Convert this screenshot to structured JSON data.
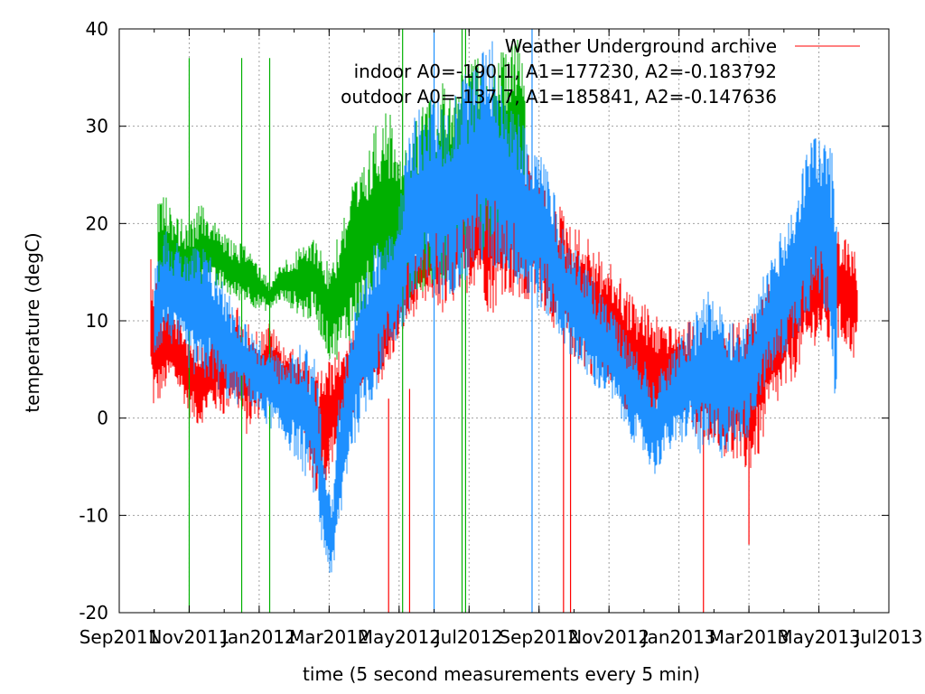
{
  "chart_data": {
    "type": "line",
    "xlabel": "time (5 second measurements every 5 min)",
    "ylabel": "temperature (degC)",
    "ylim": [
      -20,
      40
    ],
    "yticks": [
      -20,
      -10,
      0,
      10,
      20,
      30,
      40
    ],
    "x_start_month_index": 0,
    "x_end_month_index": 22,
    "xtick_labels": [
      "Sep2011",
      "Nov2011",
      "Jan2012",
      "Mar2012",
      "May2012",
      "Jul2012",
      "Sep2012",
      "Nov2012",
      "Jan2013",
      "Mar2013",
      "May2013",
      "Jul2013"
    ],
    "xtick_month_index": [
      0,
      2,
      4,
      6,
      8,
      10,
      12,
      14,
      16,
      18,
      20,
      22
    ],
    "grid": true,
    "legend": {
      "placement": "top-right",
      "entries": [
        "Weather Underground archive",
        "indoor A0=-190.1, A1=177230, A2=-0.183792",
        "outdoor A0=-137.7, A1=185841, A2=-0.147636"
      ]
    },
    "series": [
      {
        "name": "Weather Underground archive",
        "color": "#ff0000",
        "style": "line",
        "x_month": [
          0.9,
          1.0,
          1.2,
          1.5,
          1.8,
          2.0,
          2.3,
          2.6,
          3.0,
          3.3,
          3.6,
          4.0,
          4.3,
          4.6,
          5.0,
          5.3,
          5.6,
          6.0,
          6.3,
          6.6,
          7.0,
          7.3,
          7.6,
          8.0,
          8.3,
          8.6,
          9.0,
          9.3,
          9.6,
          10.0,
          10.3,
          10.6,
          11.0,
          11.3,
          11.6,
          12.0,
          12.3,
          12.6,
          13.0,
          13.3,
          13.6,
          14.0,
          14.3,
          14.6,
          15.0,
          15.3,
          15.6,
          16.0,
          16.3,
          16.6,
          17.0,
          17.3,
          17.6,
          18.0,
          18.3,
          18.6,
          19.0,
          19.3,
          19.6,
          20.0,
          20.3,
          20.6,
          21.0,
          21.1
        ],
        "min": [
          3,
          0,
          2,
          4,
          2,
          0,
          -1,
          1,
          0,
          2,
          -2,
          0,
          2,
          1,
          0,
          -3,
          -8,
          -6,
          -2,
          -1,
          2,
          3,
          4,
          8,
          10,
          11,
          12,
          10,
          12,
          13,
          14,
          10,
          13,
          12,
          11,
          12,
          10,
          8,
          6,
          5,
          4,
          3,
          2,
          0,
          -2,
          -3,
          0,
          2,
          -1,
          -3,
          -2,
          -4,
          -5,
          -6,
          -4,
          0,
          2,
          4,
          6,
          8,
          7,
          8,
          6,
          8
        ],
        "max": [
          18,
          16,
          12,
          11,
          10,
          9,
          8,
          9,
          11,
          12,
          10,
          9,
          10,
          8,
          7,
          6,
          5,
          6,
          7,
          9,
          10,
          12,
          14,
          16,
          18,
          20,
          22,
          24,
          26,
          28,
          30,
          30,
          28,
          30,
          28,
          25,
          23,
          22,
          20,
          19,
          18,
          16,
          15,
          13,
          12,
          11,
          10,
          9,
          10,
          9,
          8,
          9,
          10,
          11,
          12,
          14,
          16,
          18,
          20,
          21,
          20,
          19,
          18,
          14
        ],
        "spikes": [
          {
            "x_month": 7.7,
            "low": -20,
            "high": 2
          },
          {
            "x_month": 8.3,
            "low": -20,
            "high": 3
          },
          {
            "x_month": 12.7,
            "low": -20,
            "high": 10
          },
          {
            "x_month": 12.9,
            "low": -20,
            "high": 12
          },
          {
            "x_month": 16.7,
            "low": -20,
            "high": 5
          },
          {
            "x_month": 18.0,
            "low": -13,
            "high": 3
          }
        ]
      },
      {
        "name": "indoor A0=-190.1, A1=177230, A2=-0.183792",
        "color": "#00b000",
        "style": "line",
        "x_month": [
          1.1,
          1.3,
          1.6,
          2.0,
          2.3,
          2.6,
          3.0,
          3.3,
          3.6,
          4.0,
          4.3,
          4.6,
          5.0,
          5.3,
          5.6,
          6.0,
          6.3,
          6.6,
          7.0,
          7.3,
          7.6,
          8.0,
          8.3,
          8.6,
          9.0,
          9.3,
          9.6,
          10.0,
          10.3,
          10.6,
          11.0,
          11.3,
          11.6
        ],
        "min": [
          12,
          13,
          12,
          11,
          12,
          13,
          13,
          12,
          12,
          11,
          11,
          12,
          11,
          10,
          10,
          6,
          6,
          8,
          10,
          11,
          12,
          12,
          12,
          13,
          13,
          14,
          15,
          16,
          17,
          16,
          18,
          20,
          22
        ],
        "max": [
          22,
          23,
          21,
          20,
          22,
          21,
          19,
          18,
          18,
          16,
          14,
          16,
          17,
          18,
          19,
          16,
          20,
          24,
          26,
          30,
          32,
          30,
          28,
          32,
          34,
          35,
          35,
          36,
          38,
          36,
          38,
          40,
          38
        ],
        "spikes": [
          {
            "x_month": 2.0,
            "low": -20,
            "high": 37
          },
          {
            "x_month": 3.5,
            "low": -20,
            "high": 37
          },
          {
            "x_month": 4.3,
            "low": -20,
            "high": 37
          },
          {
            "x_month": 8.1,
            "low": -20,
            "high": 40
          },
          {
            "x_month": 9.8,
            "low": -20,
            "high": 40
          },
          {
            "x_month": 9.9,
            "low": -20,
            "high": 40
          }
        ]
      },
      {
        "name": "outdoor A0=-137.7, A1=185841, A2=-0.147636",
        "color": "#1e90ff",
        "style": "line",
        "x_month": [
          1.0,
          1.3,
          1.6,
          2.0,
          2.3,
          2.6,
          3.0,
          3.3,
          3.6,
          4.0,
          4.3,
          4.6,
          5.0,
          5.3,
          5.6,
          5.8,
          6.0,
          6.1,
          6.3,
          6.6,
          7.0,
          7.3,
          7.6,
          8.0,
          8.3,
          8.6,
          9.0,
          9.3,
          9.6,
          10.0,
          10.3,
          10.6,
          11.0,
          11.3,
          11.6,
          12.0,
          12.3,
          12.6,
          13.0,
          13.3,
          13.6,
          14.0,
          14.3,
          14.6,
          15.0,
          15.3,
          15.6,
          16.0,
          16.3,
          16.6,
          17.0,
          17.3,
          17.6,
          18.0,
          18.3,
          18.6,
          19.0,
          19.3,
          19.6,
          20.0,
          20.3,
          20.5
        ],
        "min": [
          6,
          8,
          7,
          5,
          3,
          4,
          2,
          1,
          2,
          0,
          -1,
          -2,
          -4,
          -6,
          -8,
          -14,
          -16,
          -17,
          -12,
          -4,
          0,
          2,
          6,
          8,
          10,
          12,
          12,
          12,
          13,
          14,
          16,
          14,
          15,
          14,
          12,
          11,
          10,
          8,
          6,
          4,
          3,
          2,
          0,
          -2,
          -4,
          -6,
          -4,
          -3,
          -2,
          -4,
          -5,
          -4,
          -3,
          -2,
          2,
          4,
          6,
          8,
          10,
          12,
          10,
          0
        ],
        "max": [
          16,
          20,
          18,
          18,
          18,
          17,
          14,
          12,
          10,
          8,
          8,
          6,
          7,
          8,
          6,
          0,
          -6,
          -8,
          4,
          10,
          14,
          18,
          20,
          22,
          30,
          32,
          34,
          32,
          34,
          36,
          38,
          40,
          34,
          32,
          30,
          28,
          26,
          20,
          18,
          16,
          14,
          12,
          10,
          8,
          6,
          4,
          6,
          8,
          10,
          12,
          14,
          12,
          10,
          10,
          14,
          16,
          20,
          22,
          28,
          30,
          28,
          26
        ],
        "spikes": [
          {
            "x_month": 9.0,
            "low": -20,
            "high": 40
          },
          {
            "x_month": 11.8,
            "low": -20,
            "high": 40
          }
        ]
      }
    ]
  }
}
